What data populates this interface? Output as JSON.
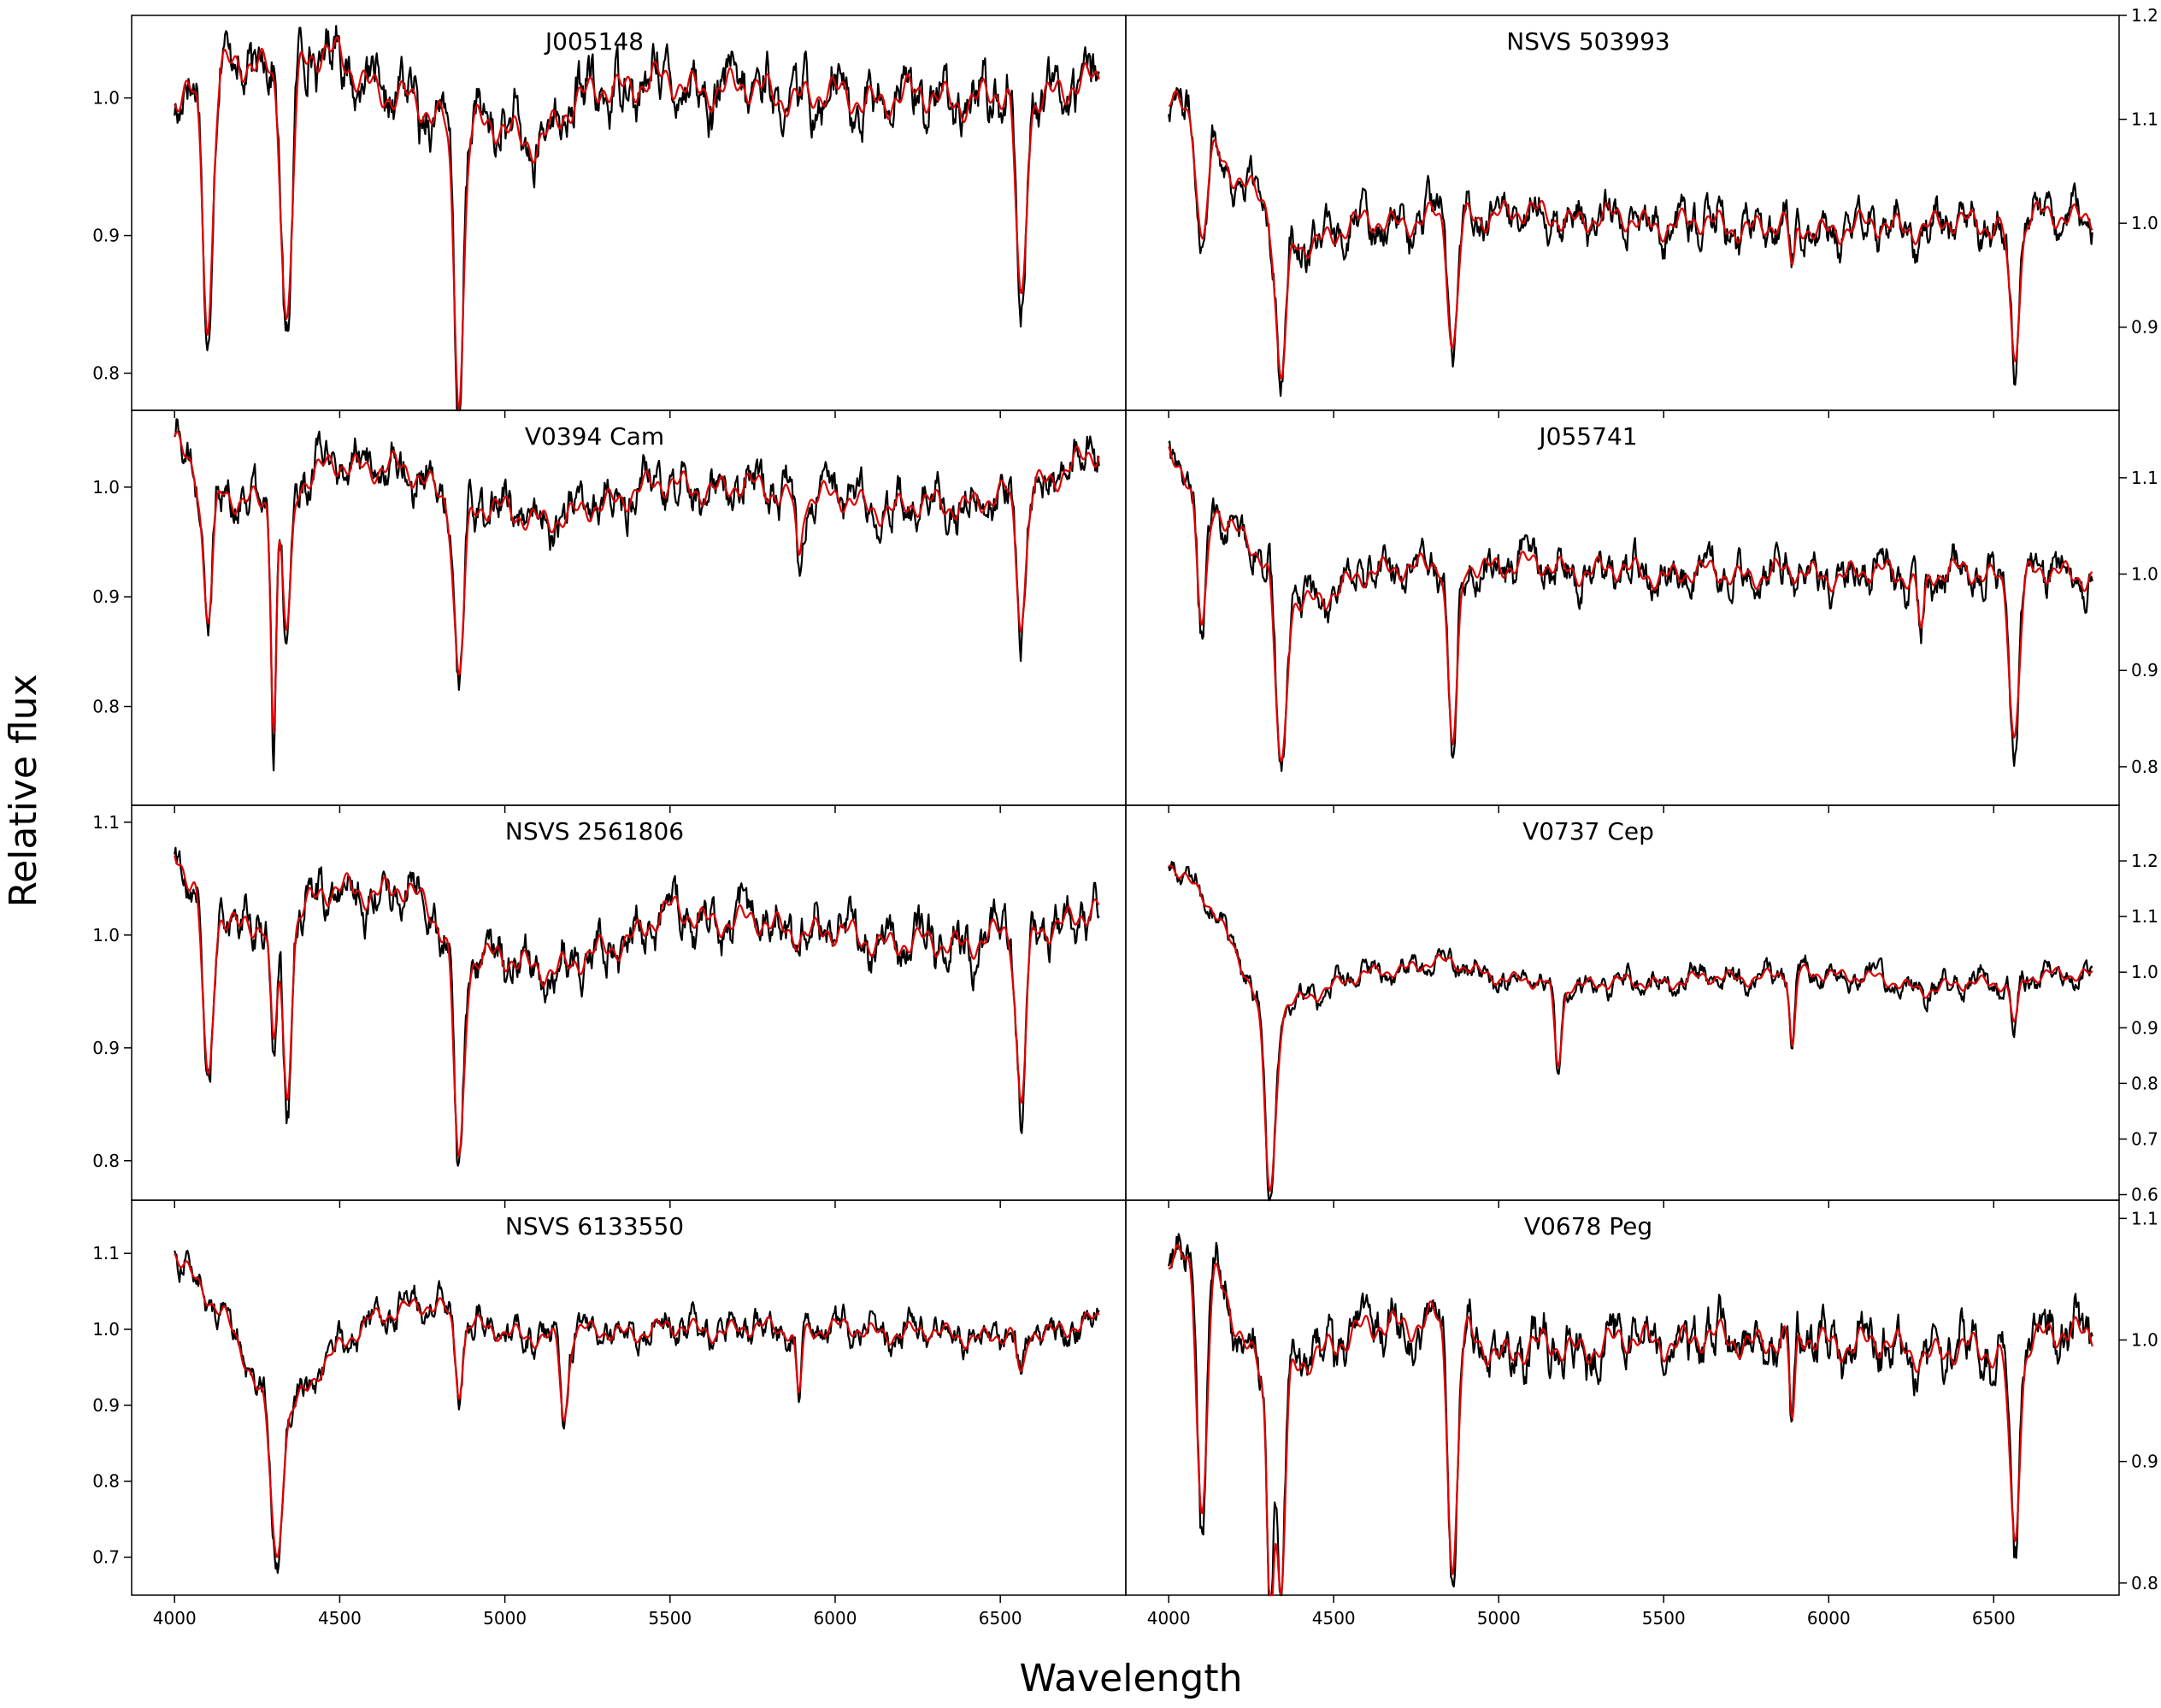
{
  "figure": {
    "ylabel": "Relative flux",
    "xlabel": "Wavelength",
    "x_ticks": [
      4000,
      4500,
      5000,
      5500,
      6000,
      6500
    ],
    "colors": {
      "observed": "#000000",
      "model": "#e00000"
    }
  },
  "chart_data": [
    {
      "type": "line",
      "title": "J005148",
      "xlim": [
        3870,
        6880
      ],
      "ylim": [
        0.773,
        1.06
      ],
      "yticks": [
        0.8,
        0.9,
        1.0
      ],
      "ytick_labels": [
        "0.8",
        "0.9",
        "1.0"
      ],
      "axis_side": "left",
      "x_ticks": [
        4000,
        4500,
        5000,
        5500,
        6000,
        6500
      ],
      "series": [
        {
          "style": "observed"
        },
        {
          "style": "model"
        }
      ],
      "lines": [
        {
          "x": 4101,
          "depth": 0.19,
          "width": 18
        },
        {
          "x": 4340,
          "depth": 0.2,
          "width": 20
        },
        {
          "x": 4861,
          "depth": 0.21,
          "width": 18
        },
        {
          "x": 6563,
          "depth": 0.17,
          "width": 18
        }
      ],
      "continuum": [
        [
          4000,
          1.0
        ],
        [
          4150,
          1.02
        ],
        [
          4500,
          1.03
        ],
        [
          4650,
          1.0
        ],
        [
          4900,
          0.98
        ],
        [
          5100,
          0.97
        ],
        [
          5300,
          1.01
        ],
        [
          5500,
          1.01
        ],
        [
          6000,
          1.0
        ],
        [
          6500,
          1.0
        ],
        [
          6800,
          1.01
        ]
      ]
    },
    {
      "type": "line",
      "title": "NSVS 503993",
      "xlim": [
        3870,
        6880
      ],
      "ylim": [
        0.82,
        1.2
      ],
      "yticks": [
        0.9,
        1.0,
        1.1,
        1.2
      ],
      "ytick_labels": [
        "0.9",
        "1.0",
        "1.1",
        "1.2"
      ],
      "axis_side": "right",
      "x_ticks": [
        4000,
        4500,
        5000,
        5500,
        6000,
        6500
      ],
      "series": [
        {
          "style": "observed"
        },
        {
          "style": "model"
        }
      ],
      "lines": [
        {
          "x": 4101,
          "depth": 0.11,
          "width": 18
        },
        {
          "x": 4340,
          "depth": 0.17,
          "width": 20
        },
        {
          "x": 4861,
          "depth": 0.14,
          "width": 18
        },
        {
          "x": 5890,
          "depth": 0.05,
          "width": 10
        },
        {
          "x": 6563,
          "depth": 0.14,
          "width": 18
        }
      ],
      "continuum": [
        [
          4000,
          1.12
        ],
        [
          4200,
          1.05
        ],
        [
          4400,
          0.98
        ],
        [
          4600,
          1.0
        ],
        [
          5000,
          1.01
        ],
        [
          5500,
          1.0
        ],
        [
          6000,
          0.995
        ],
        [
          6500,
          1.0
        ],
        [
          6800,
          1.01
        ]
      ]
    },
    {
      "type": "line",
      "title": "V0394 Cam",
      "xlim": [
        3870,
        6880
      ],
      "ylim": [
        0.71,
        1.07
      ],
      "yticks": [
        0.8,
        0.9,
        1.0
      ],
      "ytick_labels": [
        "0.8",
        "0.9",
        "1.0"
      ],
      "axis_side": "left",
      "x_ticks": [
        4000,
        4500,
        5000,
        5500,
        6000,
        6500
      ],
      "series": [
        {
          "style": "observed"
        },
        {
          "style": "model"
        }
      ],
      "lines": [
        {
          "x": 4101,
          "depth": 0.14,
          "width": 18
        },
        {
          "x": 4300,
          "depth": 0.22,
          "width": 10
        },
        {
          "x": 4340,
          "depth": 0.14,
          "width": 16
        },
        {
          "x": 4861,
          "depth": 0.17,
          "width": 18
        },
        {
          "x": 5890,
          "depth": 0.06,
          "width": 10
        },
        {
          "x": 6563,
          "depth": 0.13,
          "width": 18
        }
      ],
      "continuum": [
        [
          4000,
          1.04
        ],
        [
          4200,
          0.98
        ],
        [
          4500,
          1.02
        ],
        [
          4650,
          1.02
        ],
        [
          4900,
          0.98
        ],
        [
          5200,
          0.97
        ],
        [
          5400,
          1.0
        ],
        [
          5700,
          1.0
        ],
        [
          6200,
          0.98
        ],
        [
          6500,
          0.99
        ],
        [
          6800,
          1.03
        ]
      ]
    },
    {
      "type": "line",
      "title": "J055741",
      "xlim": [
        3870,
        6880
      ],
      "ylim": [
        0.76,
        1.17
      ],
      "yticks": [
        0.8,
        0.9,
        1.0,
        1.1
      ],
      "ytick_labels": [
        "0.8",
        "0.9",
        "1.0",
        "1.1"
      ],
      "axis_side": "right",
      "x_ticks": [
        4000,
        4500,
        5000,
        5500,
        6000,
        6500
      ],
      "series": [
        {
          "style": "observed"
        },
        {
          "style": "model"
        }
      ],
      "lines": [
        {
          "x": 4101,
          "depth": 0.16,
          "width": 18
        },
        {
          "x": 4340,
          "depth": 0.22,
          "width": 20
        },
        {
          "x": 4861,
          "depth": 0.21,
          "width": 18
        },
        {
          "x": 6280,
          "depth": 0.06,
          "width": 12
        },
        {
          "x": 6563,
          "depth": 0.18,
          "width": 18
        }
      ],
      "continuum": [
        [
          4000,
          1.12
        ],
        [
          4200,
          1.05
        ],
        [
          4400,
          0.97
        ],
        [
          4700,
          1.01
        ],
        [
          5000,
          1.01
        ],
        [
          5500,
          1.0
        ],
        [
          6000,
          1.0
        ],
        [
          6500,
          1.0
        ],
        [
          6800,
          1.0
        ]
      ]
    },
    {
      "type": "line",
      "title": "NSVS 2561806",
      "xlim": [
        3870,
        6880
      ],
      "ylim": [
        0.765,
        1.115
      ],
      "yticks": [
        0.8,
        0.9,
        1.0,
        1.1
      ],
      "ytick_labels": [
        "0.8",
        "0.9",
        "1.0",
        "1.1"
      ],
      "axis_side": "left",
      "x_ticks": [
        4000,
        4500,
        5000,
        5500,
        6000,
        6500
      ],
      "series": [
        {
          "style": "observed"
        },
        {
          "style": "model"
        }
      ],
      "lines": [
        {
          "x": 4101,
          "depth": 0.18,
          "width": 18
        },
        {
          "x": 4300,
          "depth": 0.12,
          "width": 12
        },
        {
          "x": 4340,
          "depth": 0.17,
          "width": 16
        },
        {
          "x": 4861,
          "depth": 0.21,
          "width": 18
        },
        {
          "x": 6563,
          "depth": 0.17,
          "width": 18
        }
      ],
      "continuum": [
        [
          4000,
          1.07
        ],
        [
          4200,
          1.0
        ],
        [
          4500,
          1.04
        ],
        [
          4700,
          1.04
        ],
        [
          4900,
          0.98
        ],
        [
          5200,
          0.97
        ],
        [
          5500,
          1.02
        ],
        [
          6000,
          1.0
        ],
        [
          6300,
          0.99
        ],
        [
          6500,
          1.0
        ],
        [
          6800,
          1.02
        ]
      ]
    },
    {
      "type": "line",
      "title": "V0737 Cep",
      "xlim": [
        3870,
        6880
      ],
      "ylim": [
        0.59,
        1.3
      ],
      "yticks": [
        0.6,
        0.7,
        0.8,
        0.9,
        1.0,
        1.1,
        1.2
      ],
      "ytick_labels": [
        "0.6",
        "0.7",
        "0.8",
        "0.9",
        "1.0",
        "1.1",
        "1.2"
      ],
      "axis_side": "right",
      "x_ticks": [
        4000,
        4500,
        5000,
        5500,
        6000,
        6500
      ],
      "series": [
        {
          "style": "observed"
        },
        {
          "style": "model"
        }
      ],
      "lines": [
        {
          "x": 4308,
          "depth": 0.35,
          "width": 20
        },
        {
          "x": 5180,
          "depth": 0.16,
          "width": 14
        },
        {
          "x": 5890,
          "depth": 0.15,
          "width": 10
        },
        {
          "x": 6563,
          "depth": 0.08,
          "width": 14
        }
      ],
      "continuum": [
        [
          4000,
          1.2
        ],
        [
          4150,
          1.1
        ],
        [
          4300,
          0.92
        ],
        [
          4500,
          0.98
        ],
        [
          4800,
          1.02
        ],
        [
          5100,
          0.98
        ],
        [
          5400,
          0.98
        ],
        [
          6000,
          1.0
        ],
        [
          6300,
          0.97
        ],
        [
          6800,
          1.0
        ]
      ]
    },
    {
      "type": "line",
      "title": "NSVS 6133550",
      "xlim": [
        3870,
        6880
      ],
      "ylim": [
        0.65,
        1.17
      ],
      "yticks": [
        0.7,
        0.8,
        0.9,
        1.0,
        1.1
      ],
      "ytick_labels": [
        "0.7",
        "0.8",
        "0.9",
        "1.0",
        "1.1"
      ],
      "axis_side": "left",
      "x_ticks": [
        4000,
        4500,
        5000,
        5500,
        6000,
        6500
      ],
      "series": [
        {
          "style": "observed"
        },
        {
          "style": "model"
        }
      ],
      "lines": [
        {
          "x": 4308,
          "depth": 0.2,
          "width": 20
        },
        {
          "x": 4861,
          "depth": 0.1,
          "width": 14
        },
        {
          "x": 5180,
          "depth": 0.12,
          "width": 14
        },
        {
          "x": 5890,
          "depth": 0.09,
          "width": 10
        },
        {
          "x": 6563,
          "depth": 0.07,
          "width": 14
        }
      ],
      "continuum": [
        [
          4000,
          1.1
        ],
        [
          4150,
          1.02
        ],
        [
          4250,
          0.92
        ],
        [
          4320,
          0.88
        ],
        [
          4450,
          0.95
        ],
        [
          4600,
          1.02
        ],
        [
          4800,
          1.03
        ],
        [
          5000,
          0.99
        ],
        [
          5500,
          1.0
        ],
        [
          6000,
          1.0
        ],
        [
          6500,
          0.99
        ],
        [
          6800,
          1.01
        ]
      ]
    },
    {
      "type": "line",
      "title": "V0678 Peg",
      "xlim": [
        3870,
        6880
      ],
      "ylim": [
        0.79,
        1.115
      ],
      "yticks": [
        0.8,
        0.9,
        1.0,
        1.1
      ],
      "ytick_labels": [
        "0.8",
        "0.9",
        "1.0",
        "1.1"
      ],
      "axis_side": "right",
      "x_ticks": [
        4000,
        4500,
        5000,
        5500,
        6000,
        6500
      ],
      "series": [
        {
          "style": "observed"
        },
        {
          "style": "model"
        }
      ],
      "lines": [
        {
          "x": 4101,
          "depth": 0.22,
          "width": 18
        },
        {
          "x": 4308,
          "depth": 0.19,
          "width": 12
        },
        {
          "x": 4340,
          "depth": 0.2,
          "width": 16
        },
        {
          "x": 4861,
          "depth": 0.22,
          "width": 18
        },
        {
          "x": 5890,
          "depth": 0.08,
          "width": 10
        },
        {
          "x": 6563,
          "depth": 0.17,
          "width": 18
        }
      ],
      "continuum": [
        [
          4000,
          1.07
        ],
        [
          4150,
          1.05
        ],
        [
          4300,
          0.96
        ],
        [
          4500,
          1.0
        ],
        [
          4800,
          1.02
        ],
        [
          5000,
          0.99
        ],
        [
          5500,
          1.0
        ],
        [
          6000,
          1.0
        ],
        [
          6300,
          0.99
        ],
        [
          6500,
          0.99
        ],
        [
          6800,
          1.01
        ]
      ]
    }
  ]
}
